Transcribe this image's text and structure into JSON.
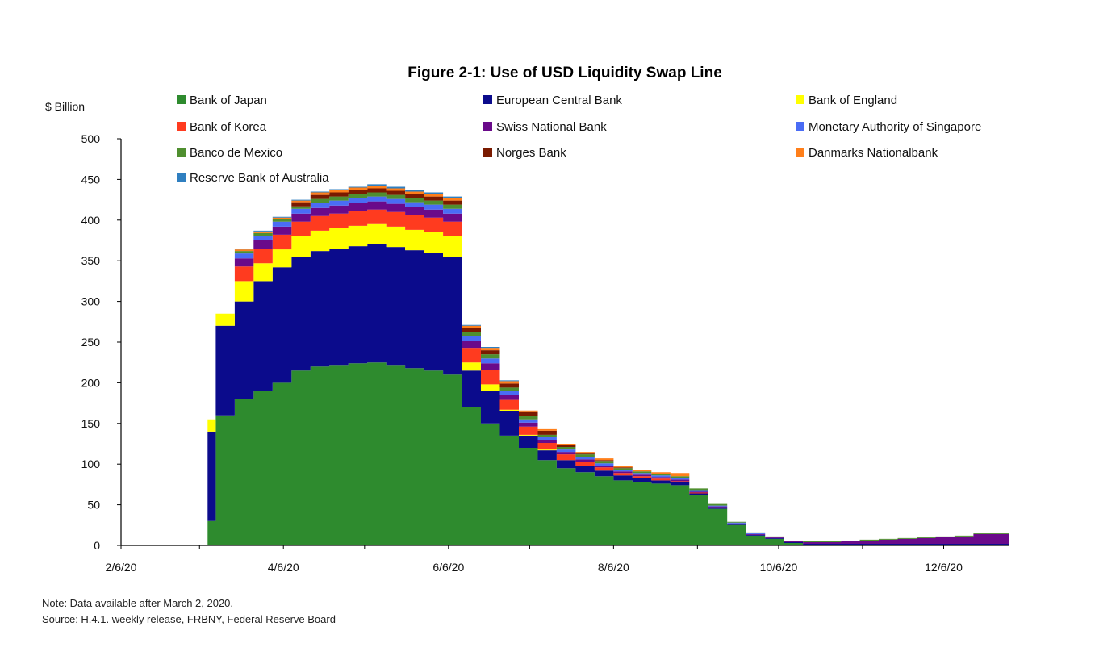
{
  "chart_data": {
    "type": "area",
    "title": "Figure 2-1: Use of USD Liquidity Swap Line",
    "ylabel": "$ Billion",
    "xlabel": "",
    "ylim": [
      0,
      500
    ],
    "yticks": [
      0,
      50,
      100,
      150,
      200,
      250,
      300,
      350,
      400,
      450,
      500
    ],
    "xlim": [
      "2/6/20",
      "12/30/20"
    ],
    "xtick_labels": [
      "2/6/20",
      "4/6/20",
      "6/6/20",
      "8/6/20",
      "10/6/20",
      "12/6/20"
    ],
    "stacked": true,
    "grid": false,
    "legend_position": "top",
    "x": [
      "3/9/20",
      "3/12/20",
      "3/19/20",
      "3/26/20",
      "4/2/20",
      "4/9/20",
      "4/16/20",
      "4/23/20",
      "4/30/20",
      "5/7/20",
      "5/14/20",
      "5/21/20",
      "5/28/20",
      "6/4/20",
      "6/11/20",
      "6/18/20",
      "6/25/20",
      "7/2/20",
      "7/9/20",
      "7/16/20",
      "7/23/20",
      "7/30/20",
      "8/6/20",
      "8/13/20",
      "8/20/20",
      "8/27/20",
      "9/3/20",
      "9/10/20",
      "9/17/20",
      "9/24/20",
      "10/1/20",
      "10/8/20",
      "10/15/20",
      "10/22/20",
      "10/29/20",
      "11/5/20",
      "11/12/20",
      "11/19/20",
      "11/26/20",
      "12/3/20",
      "12/10/20",
      "12/17/20",
      "12/24/20",
      "12/31/20"
    ],
    "series": [
      {
        "name": "Bank of Japan",
        "color": "#2e8b2e",
        "values": [
          30,
          160,
          180,
          190,
          200,
          215,
          220,
          222,
          224,
          225,
          222,
          218,
          215,
          210,
          170,
          150,
          135,
          120,
          105,
          95,
          90,
          85,
          80,
          78,
          76,
          74,
          62,
          45,
          25,
          12,
          8,
          3,
          1,
          1,
          1,
          1,
          1,
          1,
          1,
          1,
          1,
          1,
          1,
          1
        ]
      },
      {
        "name": "European Central Bank",
        "color": "#0b0b8c",
        "values": [
          110,
          110,
          120,
          135,
          142,
          140,
          142,
          143,
          144,
          145,
          145,
          145,
          145,
          145,
          45,
          40,
          30,
          15,
          12,
          10,
          8,
          7,
          6,
          5,
          4,
          4,
          2,
          2,
          1,
          1,
          1,
          1,
          1,
          1,
          1,
          1,
          1,
          1,
          1,
          1,
          1,
          1,
          1,
          1
        ]
      },
      {
        "name": "Bank of England",
        "color": "#ffff00",
        "values": [
          15,
          15,
          25,
          22,
          22,
          25,
          25,
          25,
          25,
          25,
          25,
          25,
          25,
          25,
          10,
          8,
          2,
          1,
          1,
          0,
          0,
          0,
          0,
          0,
          0,
          0,
          0,
          0,
          0,
          0,
          0,
          0,
          0,
          0,
          0,
          0,
          0,
          0,
          0,
          0,
          0,
          0,
          0,
          0
        ]
      },
      {
        "name": "Bank of Korea",
        "color": "#ff3b1f",
        "values": [
          0,
          0,
          18,
          18,
          18,
          18,
          18,
          18,
          18,
          18,
          18,
          18,
          18,
          18,
          18,
          18,
          12,
          10,
          8,
          7,
          5,
          4,
          3,
          2,
          2,
          1,
          1,
          0,
          0,
          0,
          0,
          0,
          0,
          0,
          0,
          0,
          0,
          0,
          0,
          0,
          0,
          0,
          0,
          0
        ]
      },
      {
        "name": "Swiss National Bank",
        "color": "#6a0a8a",
        "values": [
          0,
          0,
          10,
          10,
          10,
          10,
          10,
          10,
          10,
          10,
          10,
          10,
          10,
          10,
          8,
          8,
          6,
          5,
          4,
          3,
          3,
          2,
          2,
          2,
          2,
          2,
          1,
          1,
          1,
          1,
          1,
          1,
          2,
          2,
          3,
          4,
          5,
          6,
          7,
          8,
          9,
          12,
          12,
          12
        ]
      },
      {
        "name": "Monetary Authority of Singapore",
        "color": "#4a6cf5",
        "values": [
          0,
          0,
          6,
          6,
          6,
          6,
          6,
          6,
          6,
          6,
          6,
          6,
          6,
          6,
          6,
          6,
          5,
          4,
          3,
          3,
          3,
          3,
          2,
          2,
          2,
          2,
          2,
          1,
          1,
          1,
          0,
          0,
          0,
          0,
          0,
          0,
          0,
          0,
          0,
          0,
          0,
          0,
          0,
          0
        ]
      },
      {
        "name": "Banco de Mexico",
        "color": "#4f8f2f",
        "values": [
          0,
          0,
          3,
          3,
          3,
          3,
          5,
          5,
          5,
          5,
          5,
          5,
          5,
          5,
          5,
          5,
          4,
          4,
          3,
          3,
          3,
          3,
          2,
          2,
          2,
          2,
          2,
          2,
          1,
          1,
          1,
          1,
          1,
          1,
          1,
          1,
          1,
          1,
          1,
          1,
          1,
          1,
          1,
          1
        ]
      },
      {
        "name": "Norges Bank",
        "color": "#7a1a00",
        "values": [
          0,
          0,
          0,
          0,
          0,
          5,
          5,
          5,
          5,
          5,
          5,
          5,
          5,
          5,
          5,
          5,
          5,
          5,
          5,
          2,
          1,
          1,
          1,
          0,
          0,
          0,
          0,
          0,
          0,
          0,
          0,
          0,
          0,
          0,
          0,
          0,
          0,
          0,
          0,
          0,
          0,
          0,
          0,
          0
        ]
      },
      {
        "name": "Danmarks Nationalbank",
        "color": "#ff7f1a",
        "values": [
          0,
          0,
          2,
          2,
          2,
          2,
          3,
          3,
          3,
          3,
          3,
          3,
          3,
          3,
          3,
          3,
          3,
          2,
          2,
          2,
          2,
          2,
          2,
          2,
          2,
          4,
          0,
          0,
          0,
          0,
          0,
          0,
          0,
          0,
          0,
          0,
          0,
          0,
          0,
          0,
          0,
          0,
          0,
          0
        ]
      },
      {
        "name": "Reserve Bank of Australia",
        "color": "#2f7fc0",
        "values": [
          0,
          0,
          1,
          1,
          1,
          1,
          1,
          1,
          1,
          2,
          2,
          2,
          2,
          2,
          1,
          1,
          1,
          0,
          0,
          0,
          0,
          0,
          0,
          0,
          0,
          0,
          0,
          0,
          0,
          0,
          0,
          0,
          0,
          0,
          0,
          0,
          0,
          0,
          0,
          0,
          0,
          0,
          0,
          0
        ]
      }
    ],
    "notes": [
      "Note: Data available after March 2, 2020.",
      "Source: H.4.1. weekly release, FRBNY, Federal Reserve Board"
    ]
  }
}
